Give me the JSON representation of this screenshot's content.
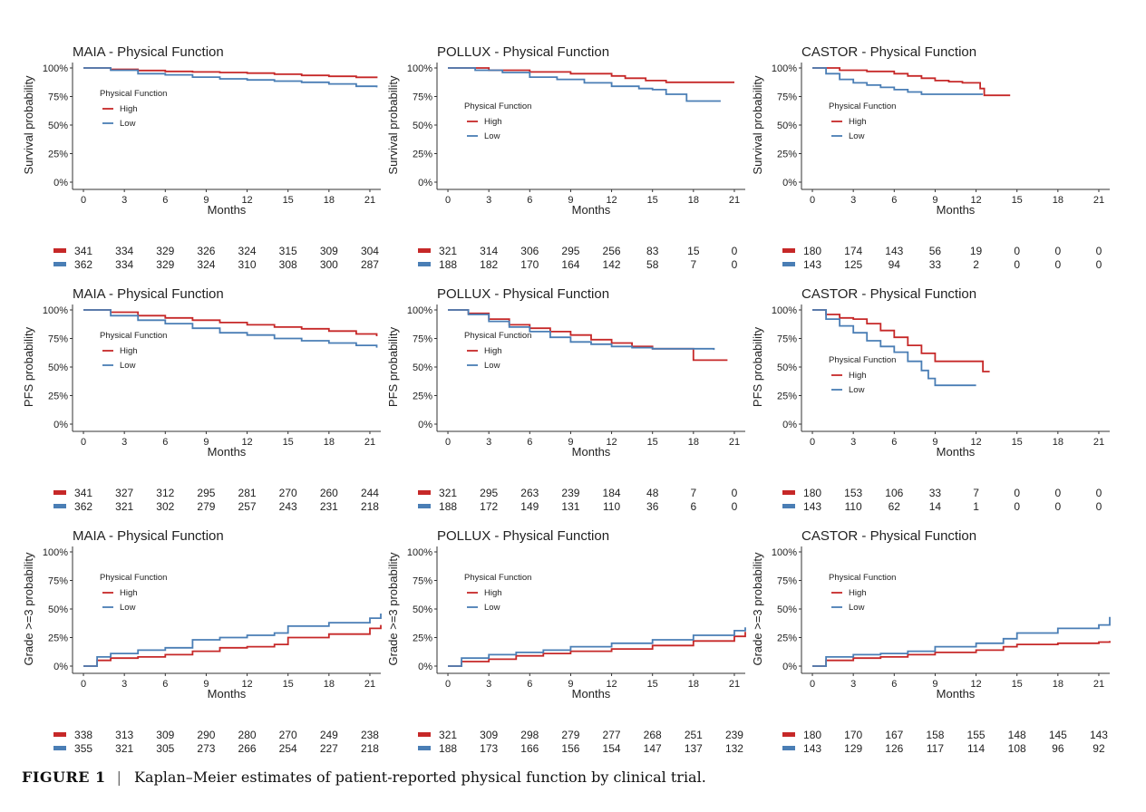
{
  "legend_title": "Physical Function",
  "caption": {
    "label": "FIGURE 1",
    "separator": "|",
    "text": "Kaplan–Meier estimates of patient-reported physical function by clinical trial."
  },
  "colors": {
    "high": "#c62828",
    "low": "#4a7eb5"
  },
  "chart_data": [
    {
      "type": "line",
      "title": "MAIA - Physical Function",
      "xlabel": "Months",
      "ylabel": "Survival probability",
      "xlim": [
        -0.8,
        21.8
      ],
      "ylim": [
        0,
        100
      ],
      "x_ticks": [
        "0",
        "3",
        "6",
        "9",
        "12",
        "15",
        "18",
        "21"
      ],
      "y_ticks": [
        "0%",
        "25%",
        "50%",
        "75%",
        "100%"
      ],
      "legend": "top-left",
      "grid": false,
      "series": [
        {
          "name": "High",
          "x": [
            0,
            2,
            4,
            6,
            8,
            10,
            12,
            14,
            16,
            18,
            20,
            21.5
          ],
          "y": [
            100,
            98.8,
            97.8,
            97,
            96.5,
            96,
            95.5,
            94.5,
            93.5,
            92.7,
            91.8,
            91
          ]
        },
        {
          "name": "Low",
          "x": [
            0,
            2,
            4,
            6,
            8,
            10,
            12,
            14,
            16,
            18,
            20,
            21.5
          ],
          "y": [
            100,
            98,
            95,
            94,
            92,
            90.5,
            89.5,
            88.5,
            87.5,
            86,
            84,
            83
          ]
        }
      ],
      "risk_table": {
        "times": [
          "0",
          "3",
          "6",
          "9",
          "12",
          "15",
          "18",
          "21"
        ],
        "high": [
          "341",
          "334",
          "329",
          "326",
          "324",
          "315",
          "309",
          "304"
        ],
        "low": [
          "362",
          "334",
          "329",
          "324",
          "310",
          "308",
          "300",
          "287"
        ]
      }
    },
    {
      "type": "line",
      "title": "POLLUX - Physical Function",
      "xlabel": "Months",
      "ylabel": "Survival probability",
      "xlim": [
        -0.8,
        21.8
      ],
      "ylim": [
        0,
        100
      ],
      "x_ticks": [
        "0",
        "3",
        "6",
        "9",
        "12",
        "15",
        "18",
        "21"
      ],
      "y_ticks": [
        "0%",
        "25%",
        "50%",
        "75%",
        "100%"
      ],
      "legend": "left",
      "grid": false,
      "series": [
        {
          "name": "High",
          "x": [
            0,
            3,
            6,
            9,
            12,
            13,
            14.5,
            16,
            21
          ],
          "y": [
            100,
            98,
            96.5,
            95,
            93,
            91,
            89,
            87.5,
            87.5
          ]
        },
        {
          "name": "Low",
          "x": [
            0,
            2,
            4,
            6,
            8,
            10,
            12,
            14,
            15,
            16,
            17.5,
            17.5,
            20
          ],
          "y": [
            100,
            98,
            96,
            92,
            90,
            87,
            84,
            82,
            81,
            77,
            77,
            71,
            71
          ]
        }
      ],
      "risk_table": {
        "times": [
          "0",
          "3",
          "6",
          "9",
          "12",
          "15",
          "18",
          "21"
        ],
        "high": [
          "321",
          "314",
          "306",
          "295",
          "256",
          "83",
          "15",
          "0"
        ],
        "low": [
          "188",
          "182",
          "170",
          "164",
          "142",
          "58",
          "7",
          "0"
        ]
      }
    },
    {
      "type": "line",
      "title": "CASTOR - Physical Function",
      "xlabel": "Months",
      "ylabel": "Survival probability",
      "xlim": [
        -0.8,
        21.8
      ],
      "ylim": [
        0,
        100
      ],
      "x_ticks": [
        "0",
        "3",
        "6",
        "9",
        "12",
        "15",
        "18",
        "21"
      ],
      "y_ticks": [
        "0%",
        "25%",
        "50%",
        "75%",
        "100%"
      ],
      "legend": "left",
      "grid": false,
      "series": [
        {
          "name": "High",
          "x": [
            0,
            2,
            4,
            6,
            7,
            8,
            9,
            10,
            11,
            12,
            12.3,
            12.6,
            14.5
          ],
          "y": [
            100,
            98,
            97,
            95,
            93,
            91,
            89,
            88,
            87,
            87,
            82,
            76,
            76
          ]
        },
        {
          "name": "Low",
          "x": [
            0,
            1,
            2,
            3,
            4,
            5,
            6,
            7,
            8,
            12.5
          ],
          "y": [
            100,
            95,
            90,
            87,
            85,
            83,
            81,
            79,
            77,
            77
          ]
        }
      ],
      "risk_table": {
        "times": [
          "0",
          "3",
          "6",
          "9",
          "12",
          "15",
          "18",
          "21"
        ],
        "high": [
          "180",
          "174",
          "143",
          "56",
          "19",
          "0",
          "0",
          "0"
        ],
        "low": [
          "143",
          "125",
          "94",
          "33",
          "2",
          "0",
          "0",
          "0"
        ]
      }
    },
    {
      "type": "line",
      "title": "MAIA - Physical Function",
      "xlabel": "Months",
      "ylabel": "PFS probability",
      "xlim": [
        -0.8,
        21.8
      ],
      "ylim": [
        0,
        100
      ],
      "x_ticks": [
        "0",
        "3",
        "6",
        "9",
        "12",
        "15",
        "18",
        "21"
      ],
      "y_ticks": [
        "0%",
        "25%",
        "50%",
        "75%",
        "100%"
      ],
      "legend": "left",
      "grid": false,
      "series": [
        {
          "name": "High",
          "x": [
            0,
            2,
            4,
            6,
            8,
            10,
            12,
            14,
            16,
            18,
            20,
            21.5
          ],
          "y": [
            100,
            98,
            95,
            93,
            91,
            89,
            87,
            85,
            83.5,
            81.5,
            79,
            77
          ]
        },
        {
          "name": "Low",
          "x": [
            0,
            2,
            4,
            6,
            8,
            10,
            12,
            14,
            16,
            18,
            20,
            21.5
          ],
          "y": [
            100,
            95,
            91,
            88,
            84,
            80,
            78,
            75,
            73,
            71,
            69,
            67
          ]
        }
      ],
      "risk_table": {
        "times": [
          "0",
          "3",
          "6",
          "9",
          "12",
          "15",
          "18",
          "21"
        ],
        "high": [
          "341",
          "327",
          "312",
          "295",
          "281",
          "270",
          "260",
          "244"
        ],
        "low": [
          "362",
          "321",
          "302",
          "279",
          "257",
          "243",
          "231",
          "218"
        ]
      }
    },
    {
      "type": "line",
      "title": "POLLUX - Physical Function",
      "xlabel": "Months",
      "ylabel": "PFS probability",
      "xlim": [
        -0.8,
        21.8
      ],
      "ylim": [
        0,
        100
      ],
      "x_ticks": [
        "0",
        "3",
        "6",
        "9",
        "12",
        "15",
        "18",
        "21"
      ],
      "y_ticks": [
        "0%",
        "25%",
        "50%",
        "75%",
        "100%"
      ],
      "legend": "left",
      "grid": false,
      "series": [
        {
          "name": "High",
          "x": [
            0,
            1.5,
            3,
            4.5,
            6,
            7.5,
            9,
            10.5,
            12,
            13.5,
            15,
            18,
            18,
            20.5
          ],
          "y": [
            100,
            97,
            92,
            87,
            84,
            81,
            78,
            74,
            71,
            68,
            66,
            65,
            56,
            56
          ]
        },
        {
          "name": "Low",
          "x": [
            0,
            1.5,
            3,
            4.5,
            6,
            7.5,
            9,
            10.5,
            12,
            13.5,
            15,
            19.5
          ],
          "y": [
            100,
            96,
            90,
            85,
            81,
            76,
            72,
            70,
            68,
            67,
            66,
            65
          ]
        }
      ],
      "risk_table": {
        "times": [
          "0",
          "3",
          "6",
          "9",
          "12",
          "15",
          "18",
          "21"
        ],
        "high": [
          "321",
          "295",
          "263",
          "239",
          "184",
          "48",
          "7",
          "0"
        ],
        "low": [
          "188",
          "172",
          "149",
          "131",
          "110",
          "36",
          "6",
          "0"
        ]
      }
    },
    {
      "type": "line",
      "title": "CASTOR - Physical Function",
      "xlabel": "Months",
      "ylabel": "PFS probability",
      "xlim": [
        -0.8,
        21.8
      ],
      "ylim": [
        0,
        100
      ],
      "x_ticks": [
        "0",
        "3",
        "6",
        "9",
        "12",
        "15",
        "18",
        "21"
      ],
      "y_ticks": [
        "0%",
        "25%",
        "50%",
        "75%",
        "100%"
      ],
      "legend": "left",
      "grid": false,
      "series": [
        {
          "name": "High",
          "x": [
            0,
            1,
            2,
            3,
            4,
            5,
            6,
            7,
            8,
            9,
            10,
            12,
            12.5,
            13
          ],
          "y": [
            100,
            96,
            93,
            92,
            88,
            82,
            76,
            69,
            62,
            55,
            55,
            55,
            46,
            46
          ]
        },
        {
          "name": "Low",
          "x": [
            0,
            1,
            2,
            3,
            4,
            5,
            6,
            7,
            8,
            8.5,
            9,
            10,
            12
          ],
          "y": [
            100,
            92,
            86,
            80,
            73,
            68,
            63,
            55,
            47,
            40,
            34,
            34,
            34
          ]
        }
      ],
      "risk_table": {
        "times": [
          "0",
          "3",
          "6",
          "9",
          "12",
          "15",
          "18",
          "21"
        ],
        "high": [
          "180",
          "153",
          "106",
          "33",
          "7",
          "0",
          "0",
          "0"
        ],
        "low": [
          "143",
          "110",
          "62",
          "14",
          "1",
          "0",
          "0",
          "0"
        ]
      }
    },
    {
      "type": "line",
      "title": "MAIA - Physical Function",
      "xlabel": "Months",
      "ylabel": "Grade >=3 probability",
      "xlim": [
        -0.8,
        21.8
      ],
      "ylim": [
        0,
        100
      ],
      "x_ticks": [
        "0",
        "3",
        "6",
        "9",
        "12",
        "15",
        "18",
        "21"
      ],
      "y_ticks": [
        "0%",
        "25%",
        "50%",
        "75%",
        "100%"
      ],
      "legend": "left",
      "grid": false,
      "series": [
        {
          "name": "High",
          "x": [
            0,
            1,
            2,
            4,
            6,
            8,
            10,
            12,
            14,
            15,
            18,
            21,
            21.8
          ],
          "y": [
            0,
            5,
            7,
            8,
            10,
            13,
            16,
            17,
            19,
            25,
            28,
            33,
            36
          ]
        },
        {
          "name": "Low",
          "x": [
            0,
            1,
            2,
            4,
            6,
            8,
            10,
            12,
            14,
            15,
            18,
            21,
            21.8
          ],
          "y": [
            0,
            8,
            11,
            14,
            16,
            23,
            25,
            27,
            29,
            35,
            38,
            42,
            46
          ]
        }
      ],
      "risk_table": {
        "times": [
          "0",
          "3",
          "6",
          "9",
          "12",
          "15",
          "18",
          "21"
        ],
        "high": [
          "338",
          "313",
          "309",
          "290",
          "280",
          "270",
          "249",
          "238"
        ],
        "low": [
          "355",
          "321",
          "305",
          "273",
          "266",
          "254",
          "227",
          "218"
        ]
      }
    },
    {
      "type": "line",
      "title": "POLLUX - Physical Function",
      "xlabel": "Months",
      "ylabel": "Grade >=3 probability",
      "xlim": [
        -0.8,
        21.8
      ],
      "ylim": [
        0,
        100
      ],
      "x_ticks": [
        "0",
        "3",
        "6",
        "9",
        "12",
        "15",
        "18",
        "21"
      ],
      "y_ticks": [
        "0%",
        "25%",
        "50%",
        "75%",
        "100%"
      ],
      "legend": "left",
      "grid": false,
      "series": [
        {
          "name": "High",
          "x": [
            0,
            1,
            3,
            5,
            7,
            9,
            12,
            15,
            18,
            21,
            21.8
          ],
          "y": [
            0,
            4,
            6,
            9,
            11,
            13,
            15,
            18,
            22,
            26,
            30
          ]
        },
        {
          "name": "Low",
          "x": [
            0,
            1,
            3,
            5,
            7,
            9,
            12,
            15,
            18,
            21,
            21.8
          ],
          "y": [
            0,
            7,
            10,
            12,
            14,
            17,
            20,
            23,
            27,
            31,
            34
          ]
        }
      ],
      "risk_table": {
        "times": [
          "0",
          "3",
          "6",
          "9",
          "12",
          "15",
          "18",
          "21"
        ],
        "high": [
          "321",
          "309",
          "298",
          "279",
          "277",
          "268",
          "251",
          "239"
        ],
        "low": [
          "188",
          "173",
          "166",
          "156",
          "154",
          "147",
          "137",
          "132"
        ]
      }
    },
    {
      "type": "line",
      "title": "CASTOR - Physical Function",
      "xlabel": "Months",
      "ylabel": "Grade >=3 probability",
      "xlim": [
        -0.8,
        21.8
      ],
      "ylim": [
        0,
        100
      ],
      "x_ticks": [
        "0",
        "3",
        "6",
        "9",
        "12",
        "15",
        "18",
        "21"
      ],
      "y_ticks": [
        "0%",
        "25%",
        "50%",
        "75%",
        "100%"
      ],
      "legend": "left",
      "grid": false,
      "series": [
        {
          "name": "High",
          "x": [
            0,
            1,
            3,
            5,
            7,
            9,
            12,
            14,
            15,
            18,
            21,
            21.8
          ],
          "y": [
            0,
            5,
            7,
            8,
            10,
            12,
            14,
            17,
            19,
            20,
            21,
            22
          ]
        },
        {
          "name": "Low",
          "x": [
            0,
            1,
            3,
            5,
            7,
            9,
            12,
            14,
            15,
            18,
            21,
            21.8
          ],
          "y": [
            0,
            8,
            10,
            11,
            13,
            17,
            20,
            24,
            29,
            33,
            36,
            43
          ]
        }
      ],
      "risk_table": {
        "times": [
          "0",
          "3",
          "6",
          "9",
          "12",
          "15",
          "18",
          "21"
        ],
        "high": [
          "180",
          "170",
          "167",
          "158",
          "155",
          "148",
          "145",
          "143"
        ],
        "low": [
          "143",
          "129",
          "126",
          "117",
          "114",
          "108",
          "96",
          "92"
        ]
      }
    }
  ]
}
